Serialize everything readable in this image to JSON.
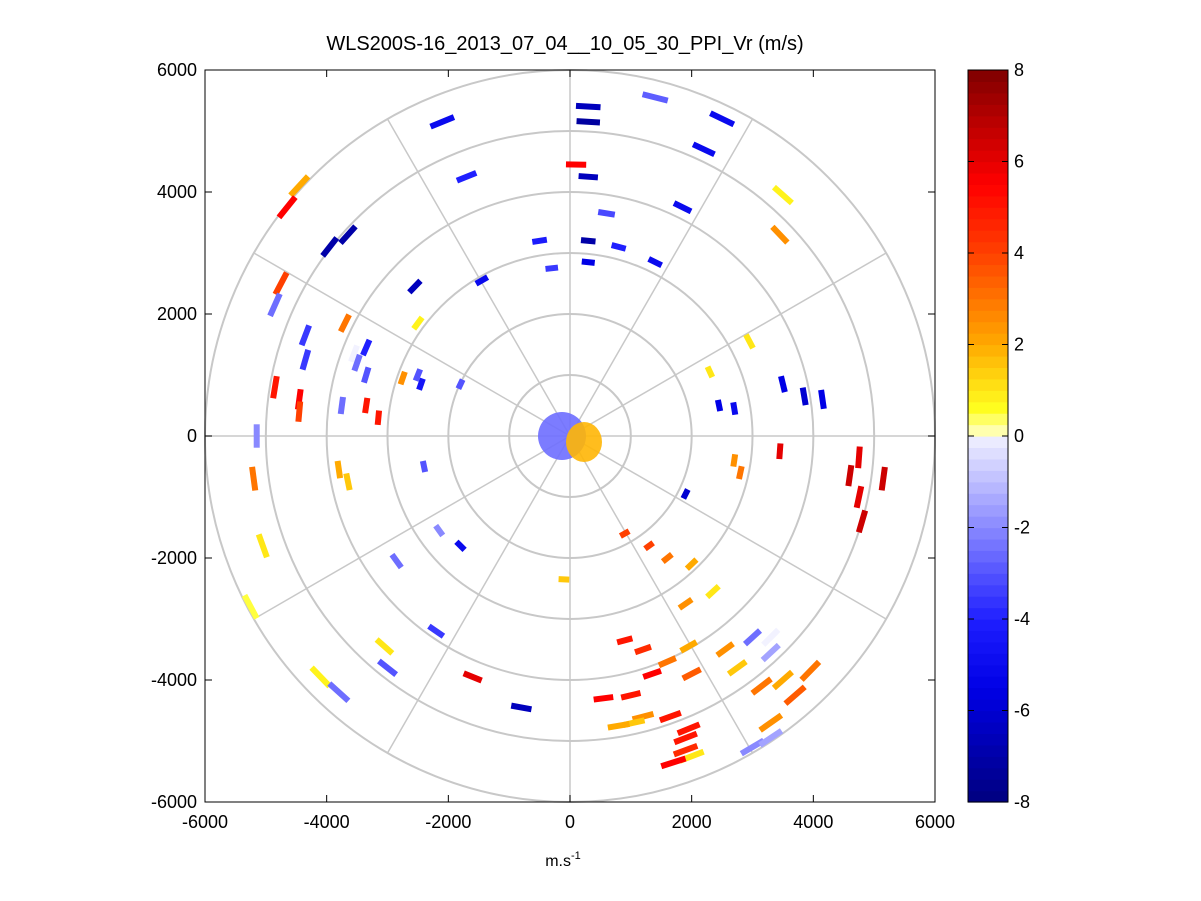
{
  "chart_data": {
    "type": "polar-ppi",
    "title": "WLS200S-16_2013_07_04__10_05_30_PPI_Vr (m/s)",
    "xlabel_base": "m.s",
    "xlabel_exp": "-1",
    "ylabel": "",
    "xlim": [
      -6000,
      6000
    ],
    "ylim": [
      -6000,
      6000
    ],
    "xticks": [
      -6000,
      -4000,
      -2000,
      0,
      2000,
      4000,
      6000
    ],
    "yticks": [
      -6000,
      -4000,
      -2000,
      0,
      2000,
      4000,
      6000
    ],
    "xtick_labels": [
      "-6000",
      "-4000",
      "-2000",
      "0",
      "2000",
      "4000",
      "6000"
    ],
    "ytick_labels": [
      "-6000",
      "-4000",
      "-2000",
      "0",
      "2000",
      "4000",
      "6000"
    ],
    "range_rings_m": [
      1000,
      2000,
      3000,
      4000,
      5000,
      6000
    ],
    "spoke_angles_deg": [
      0,
      30,
      60,
      90,
      120,
      150,
      180,
      210,
      240,
      270,
      300,
      330
    ],
    "colorbar": {
      "min": -8,
      "max": 8,
      "ticks": [
        -8,
        -6,
        -4,
        -2,
        0,
        2,
        4,
        6,
        8
      ],
      "tick_labels": [
        "-8",
        "-6",
        "-4",
        "-2",
        "0",
        "2",
        "4",
        "6",
        "8"
      ],
      "colormap_stops": [
        {
          "v": -8,
          "color": "#00007f"
        },
        {
          "v": -5.5,
          "color": "#0000e6"
        },
        {
          "v": -4,
          "color": "#1f1fff"
        },
        {
          "v": 0,
          "color": "#f2f2ff"
        },
        {
          "v": 0.01,
          "color": "#ffffd0"
        },
        {
          "v": 0.6,
          "color": "#ffff20"
        },
        {
          "v": 2,
          "color": "#ffaa00"
        },
        {
          "v": 4,
          "color": "#ff4000"
        },
        {
          "v": 5.5,
          "color": "#ff0000"
        },
        {
          "v": 8,
          "color": "#7f0000"
        }
      ]
    },
    "velocity_segments": [
      {
        "x": 300,
        "y": 5400,
        "vr": -6.5
      },
      {
        "x": 300,
        "y": 5150,
        "vr": -7.2
      },
      {
        "x": 1400,
        "y": 5550,
        "vr": -2.8
      },
      {
        "x": 2500,
        "y": 5200,
        "vr": -5.0
      },
      {
        "x": 2200,
        "y": 4700,
        "vr": -5.0
      },
      {
        "x": -2100,
        "y": 5150,
        "vr": -5.0
      },
      {
        "x": 100,
        "y": 4450,
        "vr": 5.5
      },
      {
        "x": 300,
        "y": 4250,
        "vr": -6.5
      },
      {
        "x": -1700,
        "y": 4250,
        "vr": -4.0
      },
      {
        "x": 1850,
        "y": 3750,
        "vr": -5.0
      },
      {
        "x": 3500,
        "y": 3950,
        "vr": 0.8
      },
      {
        "x": 3450,
        "y": 3300,
        "vr": 2.5
      },
      {
        "x": 600,
        "y": 3650,
        "vr": -3.2
      },
      {
        "x": 300,
        "y": 3200,
        "vr": -7.0
      },
      {
        "x": 800,
        "y": 3100,
        "vr": -4.0
      },
      {
        "x": 1400,
        "y": 2850,
        "vr": -5.0
      },
      {
        "x": -500,
        "y": 3200,
        "vr": -4.2
      },
      {
        "x": -300,
        "y": 2750,
        "vr": -3.5
      },
      {
        "x": 300,
        "y": 2850,
        "vr": -5.5
      },
      {
        "x": -1450,
        "y": 2550,
        "vr": -5.0
      },
      {
        "x": -2550,
        "y": 2450,
        "vr": -6.5
      },
      {
        "x": -3650,
        "y": 3300,
        "vr": -7.0
      },
      {
        "x": -3950,
        "y": 3100,
        "vr": -7.0
      },
      {
        "x": -4450,
        "y": 4100,
        "vr": 2.0
      },
      {
        "x": -4650,
        "y": 3750,
        "vr": 5.5
      },
      {
        "x": -4750,
        "y": 2500,
        "vr": 4.0
      },
      {
        "x": -4850,
        "y": 2150,
        "vr": -2.5
      },
      {
        "x": -4350,
        "y": 1650,
        "vr": -3.5
      },
      {
        "x": -4350,
        "y": 1250,
        "vr": -3.5
      },
      {
        "x": -3550,
        "y": 1350,
        "vr": 0.0
      },
      {
        "x": -3350,
        "y": 1450,
        "vr": -4.0
      },
      {
        "x": -3500,
        "y": 1200,
        "vr": -2.5
      },
      {
        "x": -3350,
        "y": 1000,
        "vr": -3.0
      },
      {
        "x": -3700,
        "y": 1850,
        "vr": 3.0
      },
      {
        "x": -2500,
        "y": 1850,
        "vr": 0.8
      },
      {
        "x": -2500,
        "y": 1000,
        "vr": -3.0
      },
      {
        "x": -2750,
        "y": 950,
        "vr": 2.5
      },
      {
        "x": -2450,
        "y": 850,
        "vr": -4.5
      },
      {
        "x": -1800,
        "y": 850,
        "vr": -3.0
      },
      {
        "x": -4850,
        "y": 800,
        "vr": 5.0
      },
      {
        "x": -4450,
        "y": 600,
        "vr": 5.5
      },
      {
        "x": -4450,
        "y": 400,
        "vr": 4.0
      },
      {
        "x": -3350,
        "y": 500,
        "vr": 5.0
      },
      {
        "x": -3150,
        "y": 300,
        "vr": 5.0
      },
      {
        "x": -3750,
        "y": 500,
        "vr": -2.5
      },
      {
        "x": -5150,
        "y": 0,
        "vr": -2.0
      },
      {
        "x": -5200,
        "y": -700,
        "vr": 3.0
      },
      {
        "x": -5050,
        "y": -1800,
        "vr": 1.0
      },
      {
        "x": -5250,
        "y": -2800,
        "vr": 0.5
      },
      {
        "x": -3800,
        "y": -550,
        "vr": 2.0
      },
      {
        "x": -3650,
        "y": -750,
        "vr": 1.5
      },
      {
        "x": -2400,
        "y": -500,
        "vr": -3.0
      },
      {
        "x": -2150,
        "y": -1550,
        "vr": -2.0
      },
      {
        "x": -1800,
        "y": -1800,
        "vr": -5.0
      },
      {
        "x": -2850,
        "y": -2050,
        "vr": -2.5
      },
      {
        "x": -2200,
        "y": -3200,
        "vr": -3.5
      },
      {
        "x": -3050,
        "y": -3450,
        "vr": 1.0
      },
      {
        "x": -3000,
        "y": -3800,
        "vr": -3.0
      },
      {
        "x": -4100,
        "y": -3950,
        "vr": 0.8
      },
      {
        "x": -3800,
        "y": -4200,
        "vr": -2.5
      },
      {
        "x": -1600,
        "y": -3950,
        "vr": 6.0
      },
      {
        "x": -800,
        "y": -4450,
        "vr": -6.5
      },
      {
        "x": -100,
        "y": -2350,
        "vr": 1.5
      },
      {
        "x": 550,
        "y": -4300,
        "vr": 5.5
      },
      {
        "x": 1000,
        "y": -4250,
        "vr": 5.0
      },
      {
        "x": 1650,
        "y": -4600,
        "vr": 5.0
      },
      {
        "x": 1200,
        "y": -4600,
        "vr": 2.5
      },
      {
        "x": 1050,
        "y": -4700,
        "vr": 1.5
      },
      {
        "x": 800,
        "y": -4750,
        "vr": 2.0
      },
      {
        "x": 1350,
        "y": -3900,
        "vr": 5.5
      },
      {
        "x": 1600,
        "y": -3700,
        "vr": 3.0
      },
      {
        "x": 1950,
        "y": -3450,
        "vr": 2.0
      },
      {
        "x": 2000,
        "y": -3900,
        "vr": 3.5
      },
      {
        "x": 1200,
        "y": -3500,
        "vr": 4.5
      },
      {
        "x": 900,
        "y": -3350,
        "vr": 5.0
      },
      {
        "x": 1900,
        "y": -2750,
        "vr": 2.5
      },
      {
        "x": 2350,
        "y": -2550,
        "vr": 1.0
      },
      {
        "x": 2000,
        "y": -2100,
        "vr": 2.0
      },
      {
        "x": 1600,
        "y": -2000,
        "vr": 3.0
      },
      {
        "x": 1300,
        "y": -1800,
        "vr": 4.0
      },
      {
        "x": 900,
        "y": -1600,
        "vr": 4.0
      },
      {
        "x": 2550,
        "y": -3500,
        "vr": 2.5
      },
      {
        "x": 2750,
        "y": -3800,
        "vr": 1.5
      },
      {
        "x": 3000,
        "y": -3300,
        "vr": -2.5
      },
      {
        "x": 3300,
        "y": -3550,
        "vr": -1.5
      },
      {
        "x": 3300,
        "y": -3300,
        "vr": 0.0
      },
      {
        "x": 3150,
        "y": -4100,
        "vr": 3.0
      },
      {
        "x": 3500,
        "y": -4000,
        "vr": 2.0
      },
      {
        "x": 3700,
        "y": -4250,
        "vr": 3.5
      },
      {
        "x": 3300,
        "y": -4700,
        "vr": 2.5
      },
      {
        "x": 3000,
        "y": -5100,
        "vr": -2.0
      },
      {
        "x": 3300,
        "y": -4950,
        "vr": -1.5
      },
      {
        "x": 1900,
        "y": -4950,
        "vr": 5.0
      },
      {
        "x": 1900,
        "y": -5150,
        "vr": 4.5
      },
      {
        "x": 2000,
        "y": -5250,
        "vr": 1.0
      },
      {
        "x": 1700,
        "y": -5350,
        "vr": 5.5
      },
      {
        "x": 1950,
        "y": -4800,
        "vr": 5.0
      },
      {
        "x": 3950,
        "y": -3850,
        "vr": 3.0
      },
      {
        "x": 2950,
        "y": 1550,
        "vr": 1.0
      },
      {
        "x": 2300,
        "y": 1050,
        "vr": 1.0
      },
      {
        "x": 2450,
        "y": 500,
        "vr": -5.5
      },
      {
        "x": 2700,
        "y": 450,
        "vr": -5.0
      },
      {
        "x": 3500,
        "y": 850,
        "vr": -5.5
      },
      {
        "x": 3850,
        "y": 650,
        "vr": -6.0
      },
      {
        "x": 4150,
        "y": 600,
        "vr": -5.5
      },
      {
        "x": 3450,
        "y": -250,
        "vr": 6.0
      },
      {
        "x": 4750,
        "y": -350,
        "vr": 6.0
      },
      {
        "x": 4750,
        "y": -1000,
        "vr": 6.0
      },
      {
        "x": 4600,
        "y": -650,
        "vr": 6.5
      },
      {
        "x": 5150,
        "y": -700,
        "vr": 6.5
      },
      {
        "x": 4800,
        "y": -1400,
        "vr": 6.5
      },
      {
        "x": 2800,
        "y": -600,
        "vr": 3.0
      },
      {
        "x": 1900,
        "y": -950,
        "vr": -6.0
      },
      {
        "x": 2700,
        "y": -400,
        "vr": 2.5
      }
    ]
  }
}
